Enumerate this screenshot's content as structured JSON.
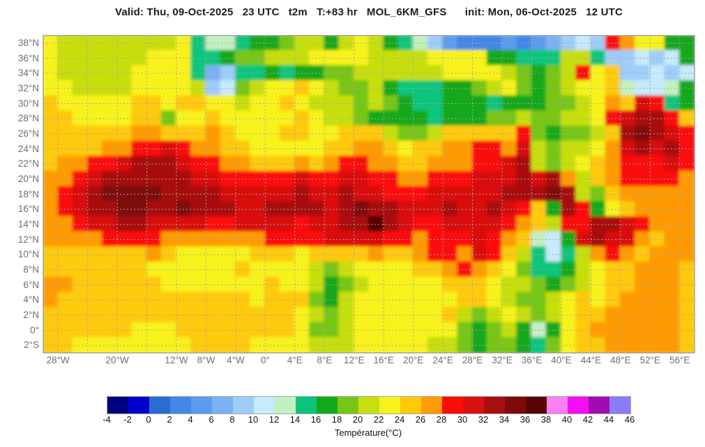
{
  "title": "Valid: Thu, 09-Oct-2025   23 UTC   t2m   T:+83 hr   MOL_6KM_GFS      init: Mon, 06-Oct-2025   12 UTC",
  "colors": {
    "page_bg": "#ffffff",
    "title_text": "#1c1c1c",
    "axis_label": "#6e6e6e",
    "grid_line": "#a6a6a6",
    "map_frame": "#8c8c8c",
    "colorbar_tick_text": "#111111"
  },
  "chart_data": {
    "type": "heatmap",
    "title": "Valid: Thu, 09-Oct-2025   23 UTC   t2m   T:+83 hr   MOL_6KM_GFS      init: Mon, 06-Oct-2025   12 UTC",
    "model": "MOL_6KM_GFS",
    "variable": "t2m",
    "valid_time": "Thu, 09-Oct-2025 23 UTC",
    "forecast_hour": "T:+83 hr",
    "init_time": "Mon, 06-Oct-2025 12 UTC",
    "colorbar": {
      "label": "Température(°C)",
      "tick_values": [
        -4,
        -2,
        0,
        2,
        4,
        6,
        8,
        10,
        12,
        14,
        16,
        18,
        20,
        22,
        24,
        26,
        28,
        30,
        32,
        34,
        36,
        38,
        40,
        42,
        44,
        46
      ],
      "cell_colors": [
        "#000080",
        "#0000cd",
        "#2a6cd4",
        "#4387e8",
        "#5c9bee",
        "#7ab1f3",
        "#9dcdf8",
        "#c7eafc",
        "#c3f0bf",
        "#0cc57c",
        "#12a81e",
        "#77c614",
        "#c7de10",
        "#f7f21c",
        "#ffc908",
        "#ff9b05",
        "#fb0d07",
        "#da1010",
        "#a81010",
        "#7e0a0a",
        "#570505",
        "#fb7ef3",
        "#f50df5",
        "#a309b5",
        "#8b7bf8"
      ]
    },
    "axes": {
      "lat_tick_labels": [
        "38°N",
        "36°N",
        "34°N",
        "32°N",
        "30°N",
        "28°N",
        "26°N",
        "24°N",
        "22°N",
        "20°N",
        "18°N",
        "16°N",
        "14°N",
        "12°N",
        "10°N",
        "8°N",
        "6°N",
        "4°N",
        "2°N",
        "0°",
        "2°S"
      ],
      "lat_tick_values": [
        38,
        36,
        34,
        32,
        30,
        28,
        26,
        24,
        22,
        20,
        18,
        16,
        14,
        12,
        10,
        8,
        6,
        4,
        2,
        0,
        -2
      ],
      "lon_tick_labels": [
        "28°W",
        "20°W",
        "12°W",
        "8°W",
        "4°W",
        "0°",
        "4°E",
        "8°E",
        "12°E",
        "16°E",
        "20°E",
        "24°E",
        "28°E",
        "32°E",
        "36°E",
        "40°E",
        "44°E",
        "48°E",
        "52°E",
        "56°E"
      ],
      "lon_tick_values": [
        -28,
        -20,
        -12,
        -8,
        -4,
        0,
        4,
        8,
        12,
        16,
        20,
        24,
        28,
        32,
        36,
        40,
        44,
        48,
        52,
        56
      ],
      "lon_range": [
        -30,
        58
      ],
      "lat_range": [
        39,
        -3
      ],
      "grid_lon_step": 4,
      "grid_lat_step": 2,
      "grid_on": true
    },
    "grid": {
      "lon_start": -30,
      "lon_step": 2,
      "lat_start": 39,
      "lat_step": -2,
      "cols": 44,
      "rows": 21,
      "units": "°C",
      "temperature_c": [
        [
          23,
          21,
          21,
          21,
          21,
          21,
          21,
          21,
          21,
          23,
          15,
          13,
          13,
          15,
          17,
          17,
          19,
          21,
          21,
          17,
          21,
          23,
          21,
          17,
          15,
          13,
          9,
          5,
          3,
          3,
          3,
          5,
          3,
          5,
          7,
          9,
          11,
          9,
          29,
          27,
          23,
          23,
          17,
          17
        ],
        [
          23,
          21,
          21,
          21,
          21,
          21,
          21,
          23,
          23,
          23,
          15,
          15,
          17,
          19,
          19,
          21,
          21,
          21,
          23,
          23,
          23,
          23,
          21,
          21,
          21,
          21,
          23,
          23,
          23,
          23,
          17,
          17,
          15,
          15,
          15,
          21,
          21,
          15,
          9,
          9,
          11,
          9,
          11,
          17
        ],
        [
          23,
          21,
          21,
          21,
          21,
          21,
          23,
          23,
          23,
          23,
          15,
          7,
          9,
          15,
          15,
          17,
          15,
          17,
          17,
          19,
          19,
          21,
          21,
          21,
          21,
          21,
          21,
          23,
          23,
          23,
          23,
          21,
          19,
          17,
          19,
          21,
          29,
          23,
          25,
          9,
          9,
          11,
          9,
          11
        ],
        [
          23,
          23,
          21,
          21,
          21,
          21,
          23,
          23,
          23,
          23,
          21,
          9,
          11,
          19,
          21,
          23,
          23,
          25,
          23,
          21,
          19,
          19,
          21,
          17,
          15,
          15,
          15,
          17,
          17,
          19,
          21,
          23,
          19,
          17,
          19,
          21,
          23,
          23,
          25,
          13,
          11,
          11,
          13,
          17
        ],
        [
          25,
          23,
          23,
          23,
          23,
          23,
          25,
          25,
          23,
          25,
          25,
          23,
          23,
          21,
          23,
          23,
          25,
          23,
          21,
          21,
          21,
          19,
          21,
          19,
          17,
          15,
          15,
          17,
          17,
          17,
          15,
          17,
          17,
          17,
          19,
          19,
          21,
          23,
          27,
          25,
          31,
          29,
          15,
          17
        ],
        [
          25,
          25,
          23,
          23,
          23,
          23,
          25,
          25,
          19,
          23,
          23,
          25,
          23,
          23,
          23,
          23,
          23,
          25,
          23,
          21,
          21,
          19,
          17,
          17,
          17,
          17,
          15,
          17,
          17,
          17,
          19,
          19,
          21,
          19,
          19,
          21,
          21,
          23,
          29,
          31,
          33,
          33,
          29,
          25
        ],
        [
          25,
          25,
          25,
          25,
          25,
          25,
          27,
          27,
          25,
          25,
          25,
          27,
          25,
          23,
          23,
          23,
          25,
          25,
          23,
          23,
          25,
          25,
          25,
          21,
          19,
          19,
          21,
          25,
          25,
          25,
          25,
          25,
          29,
          19,
          17,
          19,
          19,
          21,
          25,
          33,
          35,
          33,
          31,
          29
        ],
        [
          25,
          25,
          25,
          25,
          27,
          27,
          29,
          29,
          31,
          29,
          27,
          27,
          25,
          25,
          23,
          23,
          23,
          23,
          23,
          25,
          25,
          27,
          27,
          25,
          23,
          25,
          25,
          27,
          27,
          29,
          29,
          27,
          31,
          21,
          19,
          21,
          21,
          23,
          27,
          31,
          33,
          31,
          33,
          29
        ],
        [
          25,
          27,
          27,
          29,
          29,
          31,
          33,
          33,
          33,
          31,
          29,
          29,
          27,
          27,
          25,
          25,
          25,
          27,
          25,
          27,
          29,
          29,
          27,
          27,
          25,
          25,
          27,
          27,
          27,
          29,
          29,
          31,
          33,
          21,
          19,
          21,
          23,
          25,
          27,
          29,
          29,
          29,
          31,
          29
        ],
        [
          27,
          27,
          29,
          31,
          33,
          33,
          33,
          33,
          33,
          33,
          31,
          31,
          29,
          29,
          29,
          29,
          29,
          31,
          29,
          29,
          31,
          31,
          29,
          29,
          27,
          27,
          29,
          29,
          29,
          31,
          31,
          31,
          33,
          31,
          33,
          27,
          21,
          25,
          27,
          29,
          29,
          29,
          29,
          27
        ],
        [
          27,
          29,
          31,
          33,
          35,
          35,
          35,
          35,
          33,
          33,
          33,
          33,
          31,
          31,
          31,
          31,
          31,
          33,
          31,
          31,
          33,
          31,
          31,
          29,
          29,
          29,
          31,
          31,
          31,
          31,
          31,
          33,
          33,
          33,
          35,
          33,
          21,
          19,
          25,
          27,
          27,
          27,
          27,
          27
        ],
        [
          27,
          29,
          31,
          33,
          33,
          35,
          35,
          33,
          33,
          35,
          33,
          33,
          33,
          31,
          31,
          33,
          33,
          33,
          33,
          31,
          33,
          35,
          33,
          33,
          31,
          31,
          31,
          33,
          31,
          31,
          33,
          31,
          29,
          25,
          17,
          33,
          29,
          17,
          23,
          25,
          27,
          27,
          27,
          27
        ],
        [
          27,
          27,
          29,
          31,
          31,
          33,
          33,
          31,
          31,
          31,
          31,
          29,
          29,
          31,
          31,
          31,
          31,
          29,
          31,
          31,
          33,
          33,
          37,
          33,
          31,
          29,
          29,
          31,
          31,
          31,
          31,
          29,
          27,
          25,
          21,
          29,
          29,
          33,
          33,
          31,
          29,
          27,
          27,
          27
        ],
        [
          27,
          27,
          27,
          27,
          29,
          29,
          29,
          29,
          27,
          27,
          27,
          27,
          27,
          27,
          27,
          29,
          29,
          29,
          29,
          31,
          31,
          31,
          31,
          29,
          29,
          27,
          29,
          29,
          29,
          31,
          29,
          27,
          25,
          13,
          11,
          17,
          31,
          33,
          31,
          31,
          27,
          25,
          27,
          27
        ],
        [
          25,
          25,
          25,
          25,
          25,
          25,
          25,
          27,
          25,
          23,
          23,
          23,
          23,
          23,
          25,
          25,
          25,
          23,
          25,
          25,
          25,
          25,
          27,
          25,
          25,
          27,
          29,
          29,
          27,
          31,
          29,
          25,
          21,
          15,
          11,
          15,
          21,
          27,
          29,
          27,
          25,
          27,
          27,
          27
        ],
        [
          25,
          25,
          25,
          25,
          25,
          25,
          25,
          23,
          23,
          23,
          23,
          23,
          23,
          25,
          23,
          23,
          23,
          23,
          21,
          19,
          21,
          23,
          23,
          23,
          23,
          25,
          25,
          27,
          29,
          27,
          25,
          23,
          19,
          15,
          15,
          17,
          21,
          23,
          25,
          25,
          27,
          27,
          27,
          25
        ],
        [
          27,
          27,
          25,
          25,
          25,
          25,
          25,
          25,
          23,
          23,
          23,
          23,
          23,
          23,
          23,
          25,
          23,
          23,
          21,
          17,
          19,
          21,
          23,
          23,
          23,
          23,
          23,
          25,
          25,
          25,
          23,
          21,
          21,
          19,
          17,
          19,
          21,
          23,
          25,
          25,
          27,
          27,
          27,
          25
        ],
        [
          27,
          25,
          25,
          25,
          25,
          25,
          25,
          25,
          25,
          25,
          25,
          25,
          25,
          25,
          23,
          25,
          25,
          25,
          19,
          17,
          21,
          23,
          23,
          23,
          23,
          23,
          23,
          23,
          25,
          25,
          23,
          21,
          19,
          19,
          21,
          23,
          25,
          23,
          25,
          27,
          27,
          27,
          27,
          25
        ],
        [
          25,
          25,
          25,
          25,
          25,
          25,
          25,
          25,
          25,
          25,
          25,
          25,
          25,
          25,
          25,
          25,
          25,
          23,
          21,
          19,
          21,
          23,
          23,
          23,
          23,
          23,
          23,
          25,
          21,
          19,
          21,
          23,
          21,
          19,
          21,
          23,
          25,
          25,
          27,
          27,
          27,
          27,
          27,
          25
        ],
        [
          25,
          25,
          25,
          25,
          25,
          25,
          23,
          23,
          23,
          25,
          25,
          25,
          25,
          25,
          25,
          25,
          25,
          23,
          19,
          19,
          21,
          23,
          23,
          23,
          23,
          23,
          23,
          23,
          19,
          17,
          19,
          21,
          17,
          13,
          17,
          23,
          25,
          27,
          27,
          27,
          27,
          27,
          27,
          25
        ],
        [
          25,
          25,
          23,
          23,
          23,
          23,
          23,
          23,
          23,
          23,
          25,
          25,
          25,
          25,
          23,
          23,
          23,
          23,
          21,
          21,
          21,
          23,
          23,
          23,
          23,
          23,
          21,
          21,
          19,
          17,
          19,
          19,
          17,
          15,
          19,
          23,
          25,
          25,
          27,
          27,
          27,
          27,
          27,
          25
        ]
      ]
    }
  }
}
